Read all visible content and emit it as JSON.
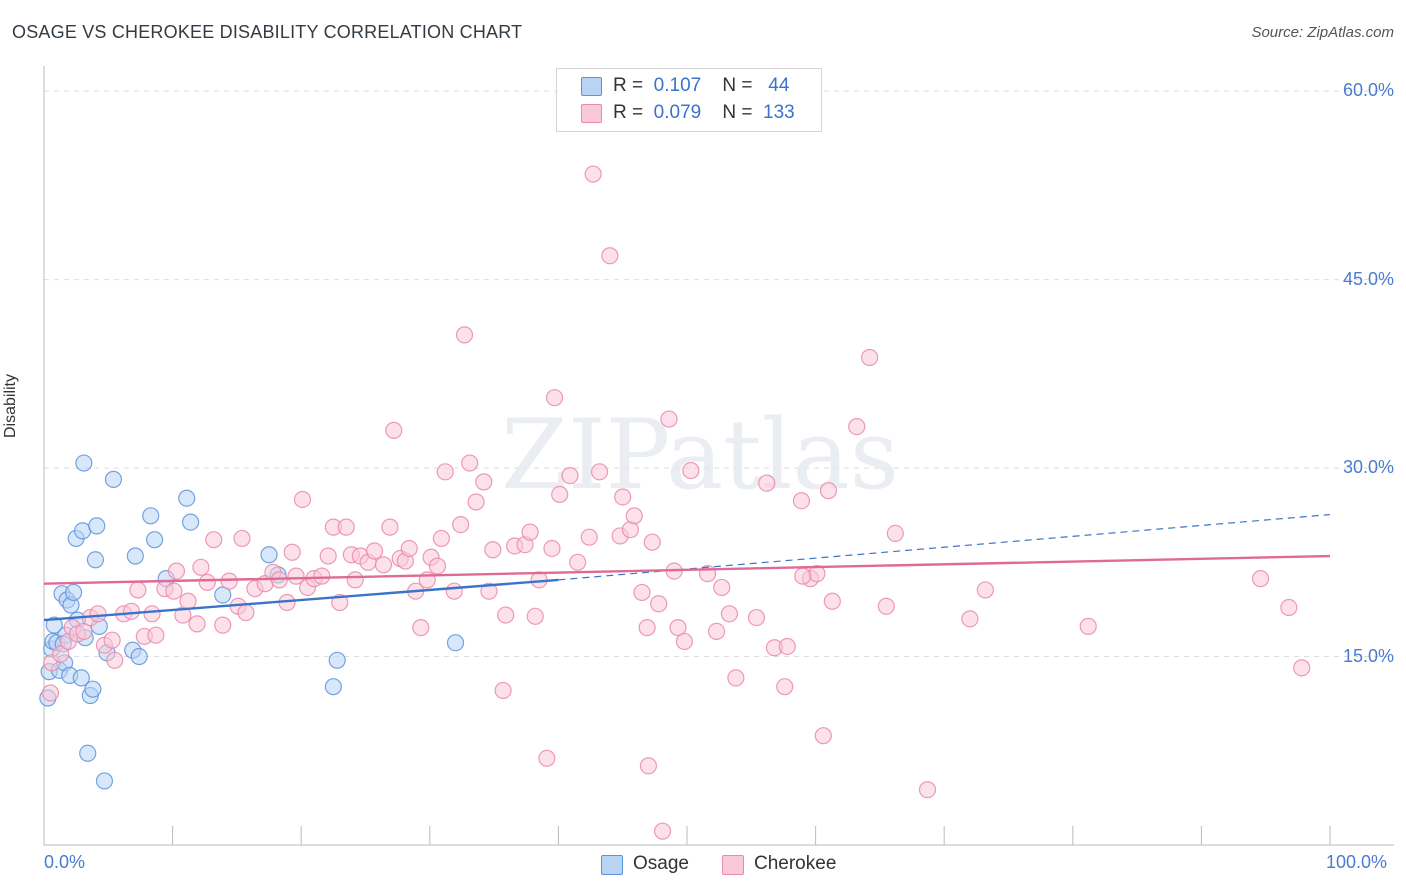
{
  "title": "OSAGE VS CHEROKEE DISABILITY CORRELATION CHART",
  "source": "Source: ZipAtlas.com",
  "watermark": "ZIPatlas",
  "colors": {
    "osage_fill": "#b9d3f5",
    "osage_stroke": "#5c94da",
    "osage_line": "#3a74c9",
    "cherokee_fill": "#f9c9d8",
    "cherokee_stroke": "#e98aaa",
    "cherokee_line": "#e06a96",
    "axis_label": "#4a7bd0",
    "grid": "#dddddd"
  },
  "stats": [
    {
      "r_label": "R =",
      "r_value": "0.107",
      "n_label": "N =",
      "n_value": "44"
    },
    {
      "r_label": "R =",
      "r_value": "0.079",
      "n_label": "N =",
      "n_value": "133"
    }
  ],
  "legend": [
    "Osage",
    "Cherokee"
  ],
  "chart_data": {
    "type": "scatter",
    "title": "OSAGE VS CHEROKEE DISABILITY CORRELATION CHART",
    "xlabel": "",
    "ylabel": "Disability",
    "xlim": [
      0,
      100
    ],
    "ylim": [
      0,
      62
    ],
    "x_tick_labels": [
      "0.0%",
      "100.0%"
    ],
    "y_ticks": [
      15,
      30,
      45,
      60
    ],
    "y_tick_labels": [
      "15.0%",
      "30.0%",
      "45.0%",
      "60.0%"
    ],
    "grid": "horizontal dashed",
    "legend_position": "bottom",
    "series": [
      {
        "name": "Osage",
        "trend": {
          "x0": 0,
          "y0": 17.9,
          "x1": 40,
          "y1": 21.1,
          "dashed_to_x": 100,
          "dashed_to_y": 26.3
        },
        "points": [
          [
            0.3,
            11.7
          ],
          [
            0.4,
            13.8
          ],
          [
            0.6,
            15.6
          ],
          [
            0.7,
            16.2
          ],
          [
            0.8,
            17.5
          ],
          [
            1.0,
            16.1
          ],
          [
            1.2,
            13.9
          ],
          [
            1.4,
            20.0
          ],
          [
            1.6,
            14.5
          ],
          [
            1.7,
            16.7
          ],
          [
            1.8,
            19.5
          ],
          [
            2.0,
            13.5
          ],
          [
            2.1,
            19.1
          ],
          [
            2.3,
            20.1
          ],
          [
            2.5,
            24.4
          ],
          [
            2.6,
            17.9
          ],
          [
            2.9,
            13.3
          ],
          [
            3.0,
            25.0
          ],
          [
            3.2,
            16.5
          ],
          [
            3.4,
            7.3
          ],
          [
            3.6,
            11.9
          ],
          [
            3.8,
            12.4
          ],
          [
            4.0,
            22.7
          ],
          [
            4.3,
            17.4
          ],
          [
            4.7,
            5.1
          ],
          [
            4.9,
            15.3
          ],
          [
            5.4,
            29.1
          ],
          [
            6.9,
            15.5
          ],
          [
            7.1,
            23.0
          ],
          [
            7.4,
            15.0
          ],
          [
            8.3,
            26.2
          ],
          [
            8.6,
            24.3
          ],
          [
            9.5,
            21.2
          ],
          [
            11.1,
            27.6
          ],
          [
            11.4,
            25.7
          ],
          [
            13.9,
            19.9
          ],
          [
            17.5,
            23.1
          ],
          [
            18.2,
            21.5
          ],
          [
            22.8,
            14.7
          ],
          [
            22.5,
            12.6
          ],
          [
            32.0,
            16.1
          ],
          [
            4.1,
            25.4
          ],
          [
            3.1,
            30.4
          ],
          [
            1.5,
            16.0
          ]
        ]
      },
      {
        "name": "Cherokee",
        "trend": {
          "x0": 0,
          "y0": 20.8,
          "x1": 100,
          "y1": 23.0
        },
        "points": [
          [
            0.5,
            12.1
          ],
          [
            0.6,
            14.5
          ],
          [
            1.3,
            15.2
          ],
          [
            1.9,
            16.2
          ],
          [
            2.2,
            17.3
          ],
          [
            2.6,
            16.8
          ],
          [
            3.1,
            17.0
          ],
          [
            3.6,
            18.1
          ],
          [
            4.2,
            18.4
          ],
          [
            4.7,
            15.9
          ],
          [
            5.3,
            16.3
          ],
          [
            5.5,
            14.7
          ],
          [
            6.2,
            18.4
          ],
          [
            6.8,
            18.6
          ],
          [
            7.3,
            20.3
          ],
          [
            7.8,
            16.6
          ],
          [
            8.4,
            18.4
          ],
          [
            8.7,
            16.7
          ],
          [
            9.4,
            20.4
          ],
          [
            10.1,
            20.2
          ],
          [
            10.3,
            21.8
          ],
          [
            10.8,
            18.3
          ],
          [
            11.2,
            19.4
          ],
          [
            11.9,
            17.6
          ],
          [
            12.2,
            22.1
          ],
          [
            12.7,
            20.9
          ],
          [
            13.2,
            24.3
          ],
          [
            13.9,
            17.5
          ],
          [
            14.4,
            21.0
          ],
          [
            15.1,
            19.0
          ],
          [
            15.7,
            18.5
          ],
          [
            15.4,
            24.4
          ],
          [
            16.4,
            20.4
          ],
          [
            17.2,
            20.8
          ],
          [
            17.8,
            21.7
          ],
          [
            18.3,
            21.1
          ],
          [
            18.9,
            19.3
          ],
          [
            19.3,
            23.3
          ],
          [
            19.6,
            21.4
          ],
          [
            20.1,
            27.5
          ],
          [
            20.5,
            20.5
          ],
          [
            21.0,
            21.2
          ],
          [
            21.6,
            21.4
          ],
          [
            22.1,
            23.0
          ],
          [
            22.5,
            25.3
          ],
          [
            23.0,
            19.3
          ],
          [
            23.5,
            25.3
          ],
          [
            23.9,
            23.1
          ],
          [
            24.2,
            21.1
          ],
          [
            24.6,
            23.0
          ],
          [
            25.2,
            22.5
          ],
          [
            25.7,
            23.4
          ],
          [
            26.4,
            22.3
          ],
          [
            26.9,
            25.3
          ],
          [
            27.2,
            33.0
          ],
          [
            27.7,
            22.8
          ],
          [
            28.1,
            22.6
          ],
          [
            28.4,
            23.6
          ],
          [
            28.9,
            20.2
          ],
          [
            29.3,
            17.3
          ],
          [
            29.8,
            21.1
          ],
          [
            30.1,
            22.9
          ],
          [
            30.6,
            22.2
          ],
          [
            30.9,
            24.4
          ],
          [
            31.2,
            29.7
          ],
          [
            31.9,
            20.2
          ],
          [
            32.4,
            25.5
          ],
          [
            32.7,
            40.6
          ],
          [
            33.1,
            30.4
          ],
          [
            33.6,
            27.3
          ],
          [
            34.2,
            28.9
          ],
          [
            34.9,
            23.5
          ],
          [
            35.7,
            12.3
          ],
          [
            35.9,
            18.3
          ],
          [
            36.6,
            23.8
          ],
          [
            37.4,
            23.9
          ],
          [
            37.8,
            24.9
          ],
          [
            38.2,
            18.2
          ],
          [
            38.5,
            21.1
          ],
          [
            39.1,
            6.9
          ],
          [
            39.7,
            35.6
          ],
          [
            40.1,
            27.9
          ],
          [
            40.9,
            29.4
          ],
          [
            41.5,
            22.5
          ],
          [
            42.4,
            24.5
          ],
          [
            42.7,
            53.4
          ],
          [
            43.2,
            29.7
          ],
          [
            44.0,
            46.9
          ],
          [
            44.8,
            24.6
          ],
          [
            45.0,
            27.7
          ],
          [
            45.6,
            25.1
          ],
          [
            45.9,
            26.2
          ],
          [
            46.5,
            20.1
          ],
          [
            46.9,
            17.3
          ],
          [
            47.3,
            24.1
          ],
          [
            47.8,
            19.2
          ],
          [
            48.1,
            1.1
          ],
          [
            48.6,
            33.9
          ],
          [
            49.3,
            17.3
          ],
          [
            49.8,
            16.2
          ],
          [
            50.3,
            29.8
          ],
          [
            51.6,
            21.6
          ],
          [
            52.3,
            17.0
          ],
          [
            52.7,
            20.5
          ],
          [
            53.3,
            18.4
          ],
          [
            53.8,
            13.3
          ],
          [
            55.4,
            18.1
          ],
          [
            56.2,
            28.8
          ],
          [
            56.8,
            15.7
          ],
          [
            57.6,
            12.6
          ],
          [
            57.8,
            15.8
          ],
          [
            58.9,
            27.4
          ],
          [
            59.6,
            21.2
          ],
          [
            60.1,
            21.6
          ],
          [
            60.6,
            8.7
          ],
          [
            61.0,
            28.2
          ],
          [
            61.3,
            19.4
          ],
          [
            63.2,
            33.3
          ],
          [
            64.2,
            38.8
          ],
          [
            65.5,
            19.0
          ],
          [
            66.2,
            24.8
          ],
          [
            68.7,
            4.4
          ],
          [
            72.0,
            18.0
          ],
          [
            73.2,
            20.3
          ],
          [
            81.2,
            17.4
          ],
          [
            94.6,
            21.2
          ],
          [
            96.8,
            18.9
          ],
          [
            97.8,
            14.1
          ],
          [
            59.0,
            21.4
          ],
          [
            39.5,
            23.6
          ],
          [
            47.0,
            6.3
          ],
          [
            49.0,
            21.8
          ],
          [
            34.6,
            20.2
          ]
        ]
      }
    ]
  }
}
